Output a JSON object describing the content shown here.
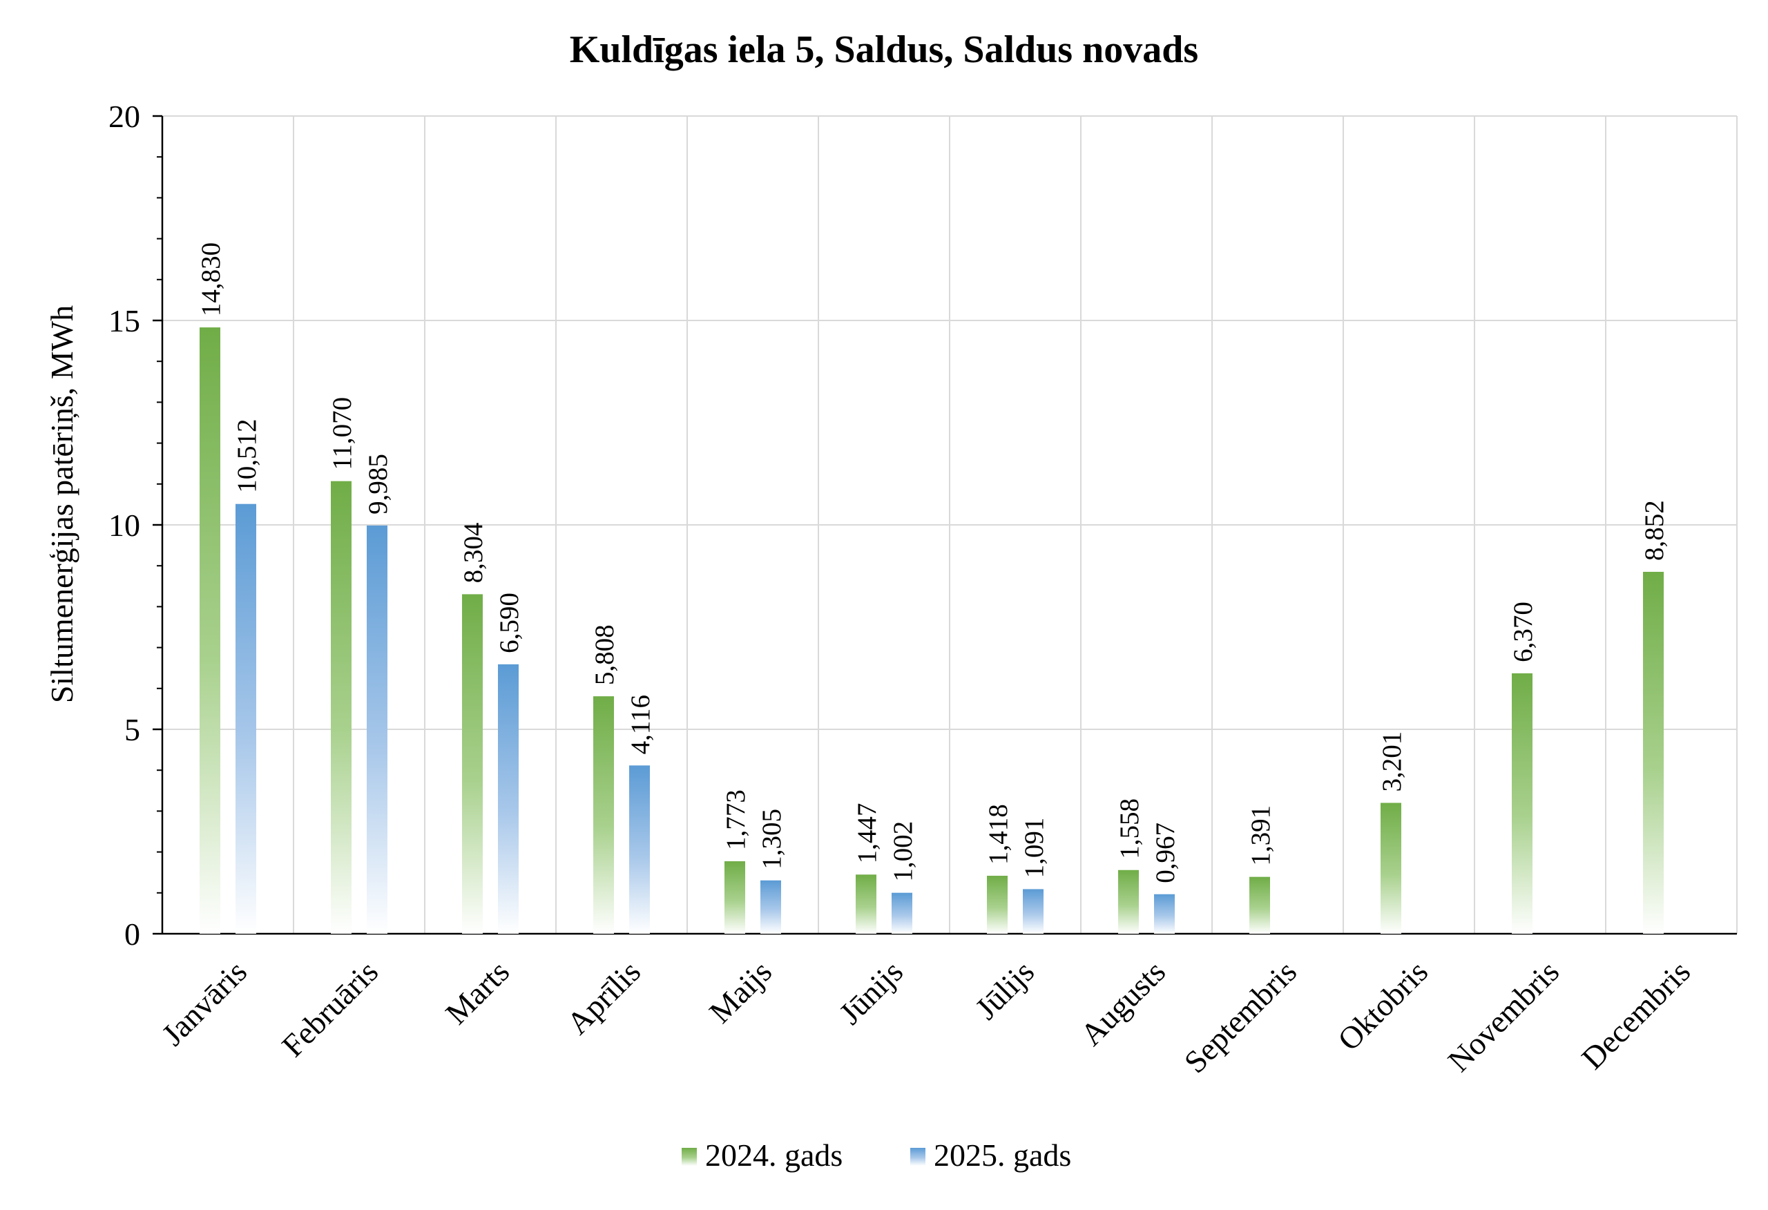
{
  "chart_data": {
    "type": "bar",
    "title": "Kuldīgas iela 5, Saldus, Saldus novads",
    "ylabel": "Siltumenerģijas patēriņš, MWh",
    "xlabel": "",
    "ylim": [
      0,
      20
    ],
    "yticks": [
      "0",
      "5",
      "10",
      "15",
      "20"
    ],
    "grid": true,
    "legend_position": "bottom",
    "categories": [
      "Janvāris",
      "Februāris",
      "Marts",
      "Aprīlis",
      "Maijs",
      "Jūnijs",
      "Jūlijs",
      "Augusts",
      "Septembris",
      "Oktobris",
      "Novembris",
      "Decembris"
    ],
    "series": [
      {
        "name": "2024. gads",
        "color": "#70ad47",
        "values": [
          14.83,
          11.07,
          8.304,
          5.808,
          1.773,
          1.447,
          1.418,
          1.558,
          1.391,
          3.201,
          6.37,
          8.852
        ],
        "labels": [
          "14,830",
          "11,070",
          "8,304",
          "5,808",
          "1,773",
          "1,447",
          "1,418",
          "1,558",
          "1,391",
          "3,201",
          "6,370",
          "8,852"
        ]
      },
      {
        "name": "2025. gads",
        "color": "#5b9bd5",
        "values": [
          10.512,
          9.985,
          6.59,
          4.116,
          1.305,
          1.002,
          1.091,
          0.967,
          null,
          null,
          null,
          null
        ],
        "labels": [
          "10,512",
          "9,985",
          "6,590",
          "4,116",
          "1,305",
          "1,002",
          "1,091",
          "0,967",
          null,
          null,
          null,
          null
        ]
      }
    ]
  }
}
